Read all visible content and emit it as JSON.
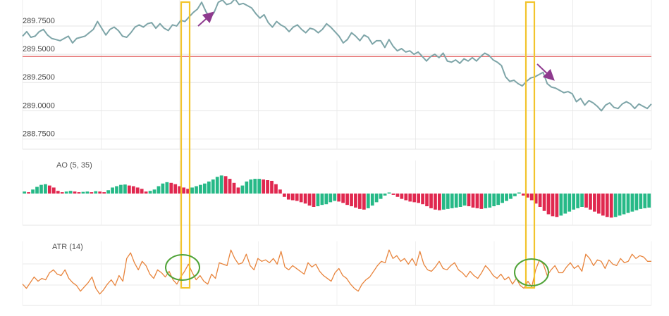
{
  "chart_data": [
    {
      "type": "line",
      "title": "",
      "xlabel": "",
      "ylabel": "",
      "ylim": [
        288.66,
        289.98
      ],
      "y_ticks": [
        "289.7500",
        "289.5000",
        "289.2500",
        "289.0000",
        "288.7500"
      ],
      "y_tick_values": [
        289.75,
        289.5,
        289.25,
        289.0,
        288.75
      ],
      "grid": true,
      "reference_line": {
        "value": 289.48,
        "color": "#e57373"
      },
      "line_color": "#7ea5a8",
      "series": [
        {
          "values": [
            289.66,
            289.7,
            289.65,
            289.66,
            289.7,
            289.72,
            289.67,
            289.64,
            289.63,
            289.62,
            289.64,
            289.66,
            289.6,
            289.64,
            289.65,
            289.66,
            289.69,
            289.72,
            289.79,
            289.73,
            289.67,
            289.72,
            289.74,
            289.71,
            289.66,
            289.65,
            289.69,
            289.74,
            289.76,
            289.74,
            289.77,
            289.78,
            289.73,
            289.77,
            289.73,
            289.71,
            289.76,
            289.75,
            289.8,
            289.79,
            289.83,
            289.87,
            289.9,
            289.96,
            289.88,
            289.82,
            289.87,
            289.96,
            289.98,
            289.94,
            289.95,
            289.99,
            289.94,
            289.95,
            289.93,
            289.91,
            289.86,
            289.82,
            289.85,
            289.78,
            289.74,
            289.79,
            289.76,
            289.74,
            289.7,
            289.74,
            289.76,
            289.72,
            289.69,
            289.73,
            289.72,
            289.69,
            289.72,
            289.77,
            289.74,
            289.7,
            289.66,
            289.6,
            289.63,
            289.69,
            289.66,
            289.62,
            289.67,
            289.65,
            289.59,
            289.62,
            289.62,
            289.56,
            289.63,
            289.57,
            289.53,
            289.55,
            289.52,
            289.53,
            289.5,
            289.52,
            289.48,
            289.44,
            289.48,
            289.5,
            289.47,
            289.51,
            289.44,
            289.43,
            289.45,
            289.42,
            289.46,
            289.44,
            289.47,
            289.44,
            289.48,
            289.51,
            289.49,
            289.45,
            289.43,
            289.4,
            289.3,
            289.26,
            289.27,
            289.24,
            289.22,
            289.26,
            289.29,
            289.3,
            289.32,
            289.34,
            289.24,
            289.21,
            289.2,
            289.18,
            289.16,
            289.17,
            289.15,
            289.08,
            289.11,
            289.05,
            289.09,
            289.07,
            289.04,
            289.0,
            289.05,
            289.07,
            289.03,
            289.02,
            289.06,
            289.08,
            289.06,
            289.02,
            289.06,
            289.04,
            289.02,
            289.06
          ]
        }
      ],
      "annotations": [
        {
          "type": "arrow",
          "direction": "up-right",
          "color": "#8e3a8e"
        },
        {
          "type": "arrow",
          "direction": "down-right",
          "color": "#8e3a8e"
        }
      ]
    },
    {
      "type": "bar",
      "title": "AO (5, 35)",
      "xlabel": "",
      "ylabel": "",
      "grid": true,
      "colors": {
        "up": "#26b987",
        "down": "#e0284f"
      },
      "values": [
        0.3,
        0.2,
        0.6,
        1.0,
        1.3,
        1.4,
        1.2,
        0.9,
        0.4,
        0.2,
        0.3,
        0.4,
        0.3,
        0.2,
        0.25,
        0.3,
        0.2,
        0.35,
        0.3,
        0.2,
        0.5,
        0.9,
        1.1,
        1.3,
        1.35,
        1.2,
        1.1,
        0.9,
        0.7,
        0.3,
        0.4,
        0.6,
        1.1,
        1.5,
        1.7,
        1.6,
        1.4,
        1.1,
        0.9,
        0.7,
        0.9,
        1.1,
        1.3,
        1.5,
        1.8,
        2.1,
        2.5,
        2.7,
        2.6,
        2.2,
        1.6,
        0.9,
        1.2,
        1.8,
        2.1,
        2.2,
        2.2,
        2.1,
        2.0,
        1.9,
        1.4,
        0.6,
        -0.5,
        -0.9,
        -1.0,
        -1.1,
        -1.3,
        -1.5,
        -1.8,
        -2.0,
        -1.9,
        -1.7,
        -1.6,
        -1.3,
        -1.1,
        -1.2,
        -1.4,
        -1.7,
        -1.9,
        -2.1,
        -2.3,
        -2.4,
        -2.2,
        -1.8,
        -1.3,
        -0.8,
        -0.3,
        0.1,
        -0.2,
        -0.5,
        -0.8,
        -1.0,
        -1.2,
        -1.3,
        -1.4,
        -1.6,
        -1.9,
        -2.2,
        -2.4,
        -2.5,
        -2.4,
        -2.3,
        -2.2,
        -2.1,
        -2.0,
        -1.8,
        -1.9,
        -2.1,
        -2.2,
        -2.3,
        -2.2,
        -2.1,
        -1.9,
        -1.7,
        -1.4,
        -1.1,
        -0.8,
        -0.4,
        0.1,
        -0.3,
        -0.6,
        -1.0,
        -1.5,
        -2.0,
        -2.6,
        -3.1,
        -3.4,
        -3.5,
        -3.3,
        -3.0,
        -2.7,
        -2.4,
        -2.2,
        -2.0,
        -2.1,
        -2.4,
        -2.7,
        -3.0,
        -3.3,
        -3.5,
        -3.6,
        -3.5,
        -3.3,
        -3.1,
        -2.9,
        -2.7,
        -2.5,
        -2.3,
        -2.2,
        -2.1
      ]
    },
    {
      "type": "line",
      "title": "ATR (14)",
      "xlabel": "",
      "ylabel": "",
      "grid": true,
      "ylim": [
        0.05,
        0.5
      ],
      "line_color": "#e8843c",
      "series": [
        {
          "values": [
            0.2,
            0.17,
            0.21,
            0.25,
            0.22,
            0.24,
            0.23,
            0.28,
            0.3,
            0.27,
            0.26,
            0.3,
            0.24,
            0.21,
            0.19,
            0.15,
            0.18,
            0.21,
            0.25,
            0.17,
            0.13,
            0.16,
            0.2,
            0.23,
            0.19,
            0.26,
            0.22,
            0.38,
            0.42,
            0.35,
            0.3,
            0.36,
            0.33,
            0.27,
            0.24,
            0.3,
            0.28,
            0.25,
            0.29,
            0.23,
            0.2,
            0.25,
            0.29,
            0.34,
            0.28,
            0.23,
            0.26,
            0.22,
            0.2,
            0.27,
            0.24,
            0.35,
            0.34,
            0.33,
            0.44,
            0.38,
            0.34,
            0.35,
            0.41,
            0.33,
            0.3,
            0.38,
            0.36,
            0.37,
            0.35,
            0.38,
            0.34,
            0.43,
            0.32,
            0.3,
            0.33,
            0.31,
            0.29,
            0.27,
            0.35,
            0.32,
            0.34,
            0.29,
            0.26,
            0.24,
            0.22,
            0.28,
            0.31,
            0.26,
            0.24,
            0.2,
            0.17,
            0.15,
            0.2,
            0.23,
            0.25,
            0.29,
            0.33,
            0.36,
            0.35,
            0.44,
            0.38,
            0.4,
            0.36,
            0.38,
            0.34,
            0.38,
            0.33,
            0.43,
            0.34,
            0.3,
            0.29,
            0.32,
            0.36,
            0.31,
            0.3,
            0.33,
            0.35,
            0.3,
            0.28,
            0.25,
            0.29,
            0.26,
            0.24,
            0.28,
            0.33,
            0.3,
            0.26,
            0.24,
            0.27,
            0.23,
            0.25,
            0.2,
            0.24,
            0.19,
            0.17,
            0.22,
            0.18,
            0.3,
            0.37,
            0.34,
            0.26,
            0.3,
            0.33,
            0.28,
            0.28,
            0.32,
            0.35,
            0.31,
            0.33,
            0.29,
            0.41,
            0.38,
            0.33,
            0.37,
            0.36,
            0.31,
            0.37,
            0.34,
            0.33,
            0.38,
            0.35,
            0.36,
            0.41,
            0.38,
            0.4,
            0.39,
            0.36,
            0.36
          ]
        }
      ]
    }
  ],
  "highlights": [
    {
      "type": "vertical-band",
      "color": "#f2c42c",
      "note_circle_color": "#4fa337"
    },
    {
      "type": "vertical-band",
      "color": "#f2c42c",
      "note_circle_color": "#4fa337"
    }
  ]
}
